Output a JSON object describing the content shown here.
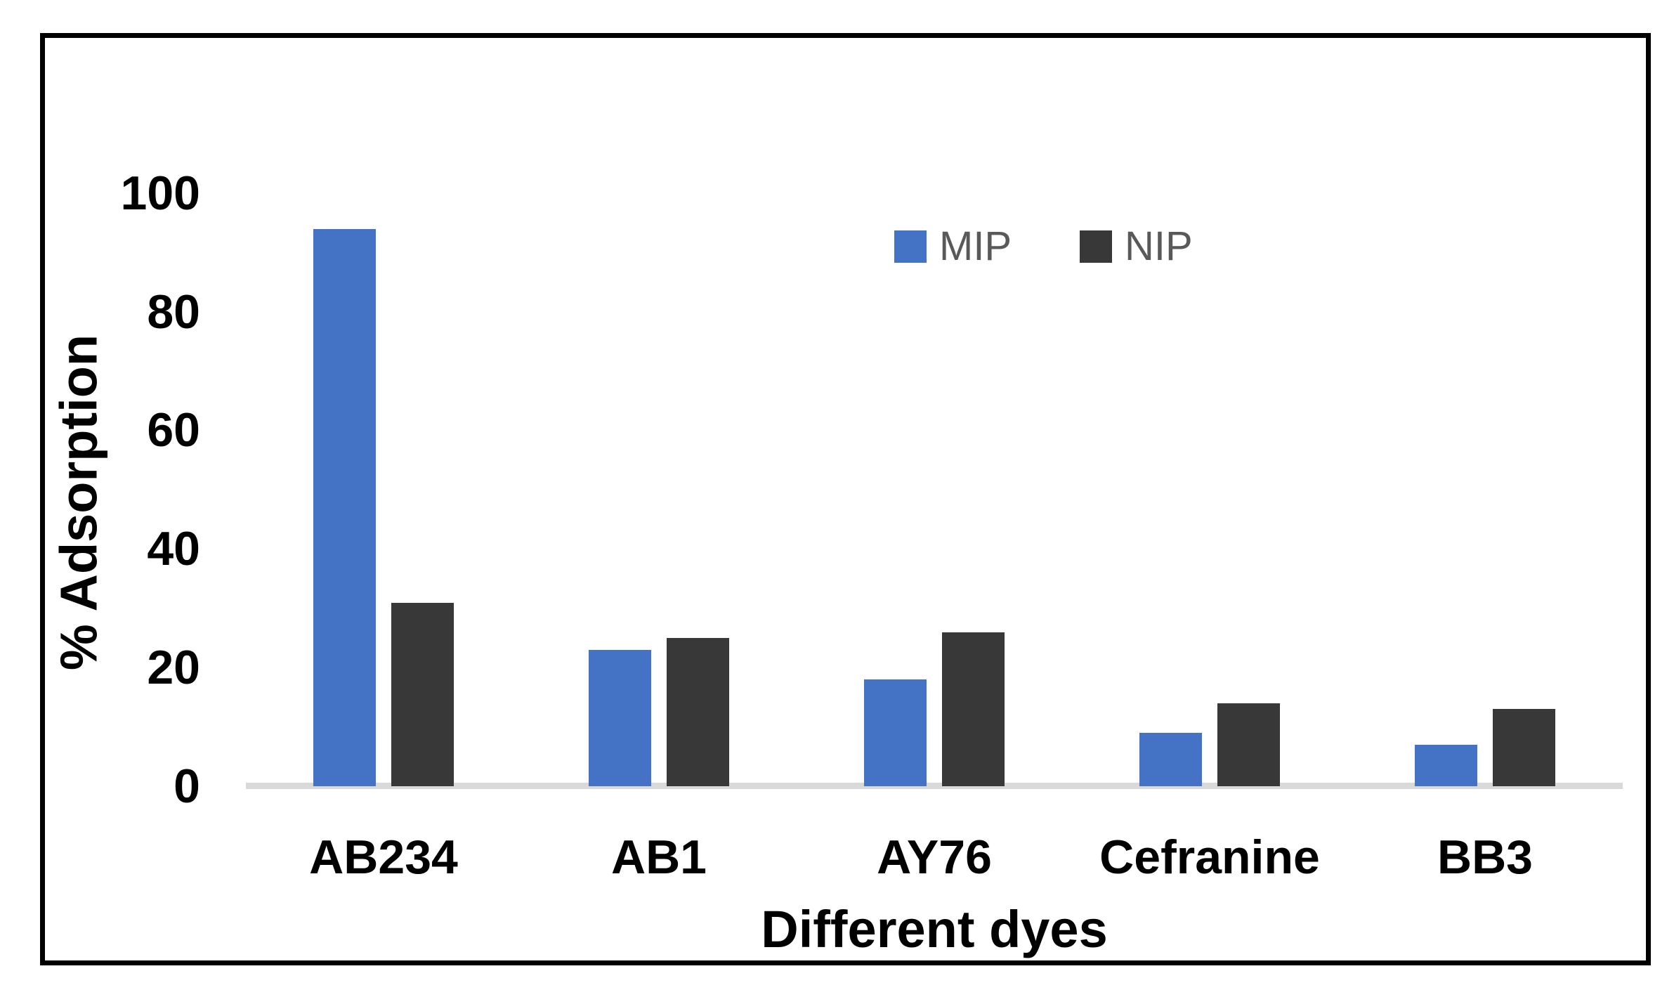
{
  "chart_data": {
    "type": "bar",
    "title": "",
    "categories": [
      "AB234",
      "AB1",
      "AY76",
      "Cefranine",
      "BB3"
    ],
    "series": [
      {
        "name": "MIP",
        "color": "#4472C4",
        "values": [
          94,
          23,
          18,
          9,
          7
        ]
      },
      {
        "name": "NIP",
        "color": "#383838",
        "values": [
          31,
          25,
          26,
          14,
          13
        ]
      }
    ],
    "xlabel": "Different dyes",
    "ylabel": "% Adsorption",
    "ylim": [
      0,
      100
    ],
    "yticks": [
      0,
      20,
      40,
      60,
      80,
      100
    ],
    "grid": false,
    "legend_position": "top-center",
    "legend_text_color": "#595959",
    "axis_line_color": "#D9D9D9",
    "frame_border_color": "#000000",
    "tick_text_color": "#000000"
  }
}
